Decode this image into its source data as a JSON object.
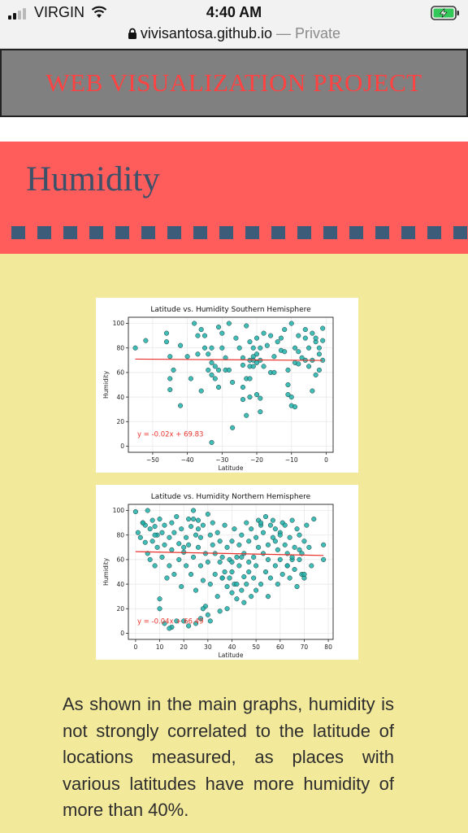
{
  "status_bar": {
    "carrier": "VIRGIN",
    "time": "4:40 AM",
    "url": "vivisantosa.github.io",
    "privacy": "— Private"
  },
  "header": {
    "title": "WEB VISUALIZATION PROJECT"
  },
  "section": {
    "title": "Humidity",
    "dash_count": 18
  },
  "colors": {
    "header_bg": "#808080",
    "title_red": "#ff4242",
    "banner_red": "#ff5c5c",
    "section_title": "#3d5169",
    "dash": "#3d5c7a",
    "page_bg": "#f3e99b",
    "marker": "#20b2aa",
    "regression": "#e8312b"
  },
  "chart_data": [
    {
      "type": "scatter",
      "title": "Latitude vs. Humidity Southern Hemisphere",
      "xlabel": "Latitude",
      "ylabel": "Humidity",
      "xlim": [
        -57,
        2
      ],
      "ylim": [
        -5,
        105
      ],
      "xticks": [
        -50,
        -40,
        -30,
        -20,
        -10,
        0
      ],
      "xtick_labels": [
        "−50",
        "−40",
        "−30",
        "−20",
        "−10",
        "0"
      ],
      "yticks": [
        0,
        20,
        40,
        60,
        80,
        100
      ],
      "grid": true,
      "annotation": "y = -0.02x + 69.83",
      "regression": {
        "slope": -0.02,
        "intercept": 69.83
      },
      "x": [
        -55,
        -52,
        -46,
        -46,
        -45,
        -45,
        -44,
        -42,
        -40,
        -39,
        -38,
        -37,
        -36,
        -35,
        -35,
        -34,
        -34,
        -33,
        -33,
        -33,
        -32,
        -32,
        -31,
        -31,
        -31,
        -30,
        -29,
        -29,
        -28,
        -27,
        -27,
        -26,
        -25,
        -24,
        -24,
        -24,
        -23,
        -23,
        -22,
        -22,
        -22,
        -22,
        -21,
        -21,
        -21,
        -21,
        -20,
        -20,
        -20,
        -20,
        -19,
        -19,
        -19,
        -18,
        -18,
        -17,
        -16,
        -16,
        -15,
        -14,
        -13,
        -13,
        -12,
        -11,
        -11,
        -10,
        -10,
        -10,
        -9,
        -9,
        -9,
        -8,
        -8,
        -8,
        -7,
        -6,
        -6,
        -5,
        -5,
        -4,
        -4,
        -4,
        -3,
        -3,
        -3,
        -2,
        -2,
        -2,
        -1,
        -1,
        -1,
        -28,
        -33,
        -45,
        -42,
        -36,
        -23,
        -24,
        -37,
        -22,
        -6,
        -11,
        -19,
        -15,
        -12,
        -30
      ],
      "y": [
        80,
        86,
        92,
        85,
        55,
        46,
        62,
        33,
        73,
        55,
        100,
        90,
        95,
        90,
        80,
        75,
        62,
        80,
        68,
        58,
        65,
        55,
        48,
        62,
        97,
        80,
        72,
        62,
        100,
        52,
        15,
        88,
        80,
        72,
        66,
        38,
        98,
        55,
        85,
        70,
        65,
        40,
        80,
        73,
        70,
        65,
        68,
        88,
        75,
        42,
        80,
        70,
        28,
        92,
        65,
        82,
        60,
        90,
        73,
        85,
        78,
        88,
        95,
        42,
        62,
        40,
        33,
        100,
        80,
        68,
        32,
        90,
        77,
        67,
        72,
        95,
        88,
        80,
        65,
        92,
        70,
        45,
        85,
        58,
        88,
        75,
        62,
        80,
        86,
        70,
        96,
        62,
        3,
        73,
        82,
        45,
        25,
        48,
        75,
        55,
        70,
        50,
        39,
        60,
        77,
        92
      ],
      "point_color": "#20b2aa",
      "line_color": "#e8312b"
    },
    {
      "type": "scatter",
      "title": "Latitude vs. Humidity Northern Hemisphere",
      "xlabel": "Latitude",
      "ylabel": "Humidity",
      "xlim": [
        -3,
        82
      ],
      "ylim": [
        -5,
        105
      ],
      "xticks": [
        0,
        10,
        20,
        30,
        40,
        50,
        60,
        70,
        80
      ],
      "xtick_labels": [
        "0",
        "10",
        "20",
        "30",
        "40",
        "50",
        "60",
        "70",
        "80"
      ],
      "yticks": [
        0,
        20,
        40,
        60,
        80,
        100
      ],
      "grid": true,
      "annotation": "y = -0.04x + 66.49",
      "regression": {
        "slope": -0.04,
        "intercept": 66.49
      },
      "x": [
        0,
        1,
        2,
        3,
        4,
        4,
        5,
        5,
        6,
        6,
        7,
        7,
        8,
        8,
        9,
        9,
        10,
        10,
        11,
        11,
        12,
        12,
        13,
        14,
        14,
        15,
        15,
        16,
        16,
        17,
        18,
        18,
        19,
        19,
        20,
        20,
        21,
        21,
        22,
        22,
        23,
        23,
        24,
        24,
        25,
        25,
        26,
        26,
        27,
        27,
        28,
        28,
        29,
        29,
        30,
        30,
        31,
        31,
        32,
        32,
        33,
        33,
        34,
        34,
        35,
        35,
        36,
        36,
        37,
        37,
        38,
        38,
        38,
        39,
        39,
        40,
        40,
        40,
        41,
        41,
        42,
        42,
        43,
        43,
        44,
        44,
        45,
        45,
        46,
        46,
        47,
        47,
        48,
        48,
        49,
        49,
        50,
        50,
        51,
        51,
        52,
        52,
        53,
        53,
        54,
        54,
        55,
        55,
        56,
        56,
        57,
        57,
        58,
        58,
        59,
        59,
        60,
        60,
        61,
        61,
        62,
        62,
        63,
        63,
        64,
        64,
        65,
        65,
        66,
        66,
        67,
        67,
        68,
        68,
        69,
        69,
        70,
        70,
        71,
        72,
        73,
        74,
        78,
        78,
        12,
        15,
        17,
        22,
        25,
        27,
        28,
        30,
        31,
        10,
        14,
        35,
        40,
        42,
        45,
        50,
        55,
        60,
        65,
        70,
        20,
        24,
        26,
        36,
        44,
        47,
        52,
        58,
        63,
        68,
        3,
        8
      ],
      "y": [
        99,
        82,
        78,
        90,
        74,
        88,
        100,
        65,
        85,
        60,
        92,
        75,
        87,
        55,
        80,
        70,
        20,
        93,
        62,
        82,
        72,
        88,
        45,
        78,
        55,
        90,
        68,
        48,
        82,
        95,
        60,
        73,
        38,
        85,
        10,
        66,
        78,
        55,
        93,
        72,
        48,
        87,
        100,
        62,
        80,
        35,
        70,
        92,
        55,
        78,
        43,
        88,
        65,
        22,
        97,
        58,
        80,
        40,
        72,
        90,
        48,
        65,
        82,
        30,
        58,
        75,
        45,
        62,
        50,
        88,
        38,
        70,
        20,
        60,
        45,
        33,
        75,
        50,
        85,
        40,
        62,
        28,
        55,
        72,
        35,
        80,
        46,
        65,
        90,
        40,
        58,
        75,
        30,
        85,
        62,
        45,
        78,
        55,
        92,
        70,
        40,
        88,
        65,
        82,
        50,
        95,
        72,
        60,
        88,
        45,
        78,
        92,
        55,
        85,
        68,
        40,
        82,
        60,
        90,
        48,
        72,
        88,
        55,
        65,
        78,
        45,
        92,
        60,
        70,
        52,
        85,
        38,
        68,
        80,
        48,
        65,
        75,
        45,
        88,
        70,
        55,
        93,
        60,
        72,
        8,
        5,
        10,
        6,
        8,
        12,
        20,
        15,
        10,
        28,
        4,
        18,
        58,
        40,
        25,
        35,
        30,
        80,
        62,
        48,
        70,
        93,
        85,
        45,
        62,
        50,
        90,
        75,
        55,
        60,
        90,
        80
      ],
      "point_color": "#20b2aa",
      "line_color": "#e8312b"
    }
  ],
  "description": "As shown in the main graphs, humidity is not strongly correlated to the latitude of locations measured, as places with various latitudes have more humidity of more than 40%."
}
